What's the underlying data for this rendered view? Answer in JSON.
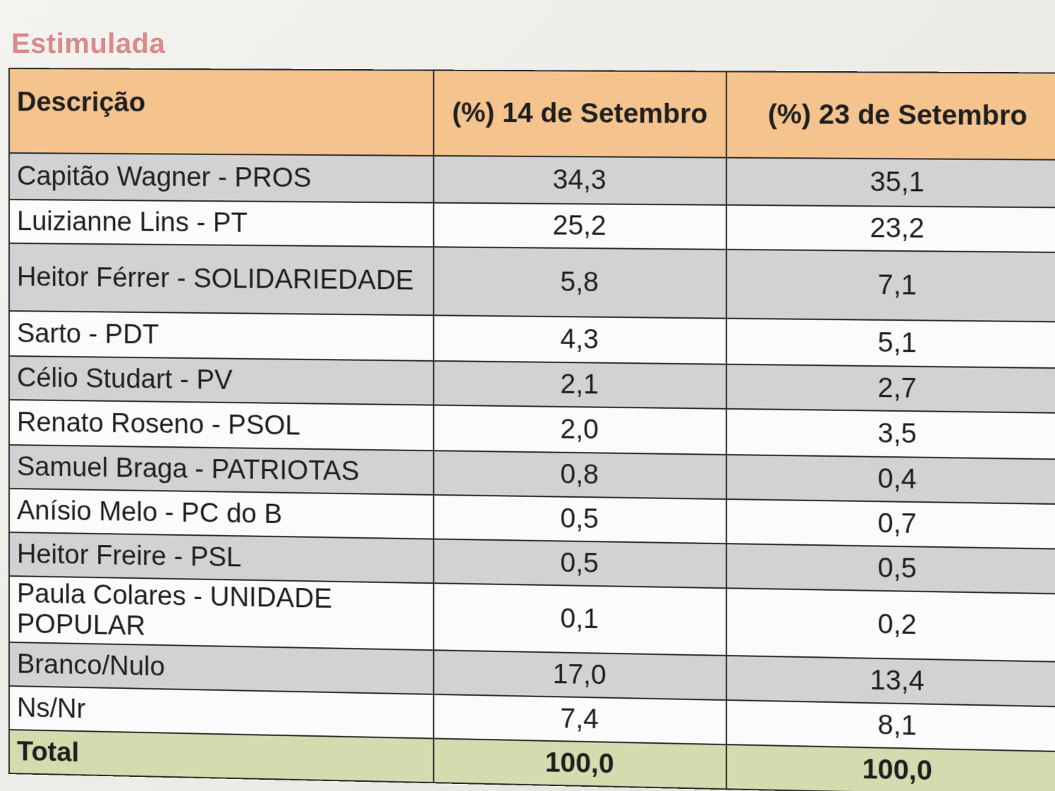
{
  "title": "Estimulada",
  "table": {
    "headers": [
      "Descrição",
      "(%) 14 de Setembro",
      "(%) 23 de Setembro"
    ],
    "rows": [
      {
        "name": "Capitão Wagner - PROS",
        "v14": "34,3",
        "v23": "35,1"
      },
      {
        "name": "Luizianne Lins - PT",
        "v14": "25,2",
        "v23": "23,2"
      },
      {
        "name": "Heitor Férrer - SOLIDARIEDADE",
        "v14": "5,8",
        "v23": "7,1"
      },
      {
        "name": "Sarto - PDT",
        "v14": "4,3",
        "v23": "5,1"
      },
      {
        "name": "Célio Studart - PV",
        "v14": "2,1",
        "v23": "2,7"
      },
      {
        "name": "Renato Roseno - PSOL",
        "v14": "2,0",
        "v23": "3,5"
      },
      {
        "name": "Samuel Braga - PATRIOTAS",
        "v14": "0,8",
        "v23": "0,4"
      },
      {
        "name": "Anísio Melo - PC do B",
        "v14": "0,5",
        "v23": "0,7"
      },
      {
        "name": "Heitor Freire - PSL",
        "v14": "0,5",
        "v23": "0,5"
      },
      {
        "name": "Paula Colares - UNIDADE POPULAR",
        "v14": "0,1",
        "v23": "0,2"
      },
      {
        "name": "Branco/Nulo",
        "v14": "17,0",
        "v23": "13,4"
      },
      {
        "name": "Ns/Nr",
        "v14": "7,4",
        "v23": "8,1"
      }
    ],
    "total": {
      "name": "Total",
      "v14": "100,0",
      "v23": "100,0"
    }
  },
  "colors": {
    "title": "#d98a8a",
    "header_bg": "#f5c48e",
    "row_shade": "#d2d2d4",
    "row_plain": "#fbfbfb",
    "total_bg": "#d3dcae"
  }
}
